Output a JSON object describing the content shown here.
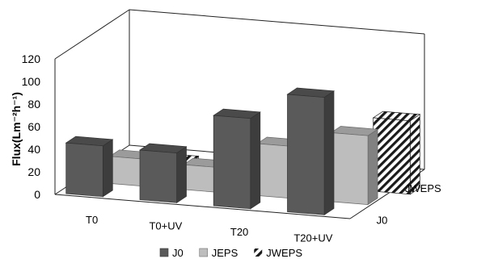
{
  "chart_data": {
    "type": "bar",
    "subtype": "3d-clustered-column",
    "title": "",
    "xlabel": "",
    "ylabel": "Flux(Lm⁻²h⁻¹)",
    "ylim": [
      0,
      120
    ],
    "yticks": [
      0,
      20,
      40,
      60,
      80,
      100,
      120
    ],
    "categories": [
      "T0",
      "T0+UV",
      "T20",
      "T20+UV"
    ],
    "depth_labels": [
      "J0",
      "JWEPS"
    ],
    "grid": false,
    "legend_position": "bottom",
    "series": [
      {
        "name": "J0",
        "values": [
          45,
          44,
          80,
          104
        ],
        "color": "#5a5a5a",
        "pattern": "solid"
      },
      {
        "name": "JEPS",
        "values": [
          24,
          22,
          46,
          61
        ],
        "color": "#bdbdbd",
        "pattern": "solid"
      },
      {
        "name": "JWEPS",
        "values": [
          12,
          10,
          38,
          65
        ],
        "color": "#1a1a1a",
        "pattern": "diagonal-stripes"
      }
    ]
  }
}
